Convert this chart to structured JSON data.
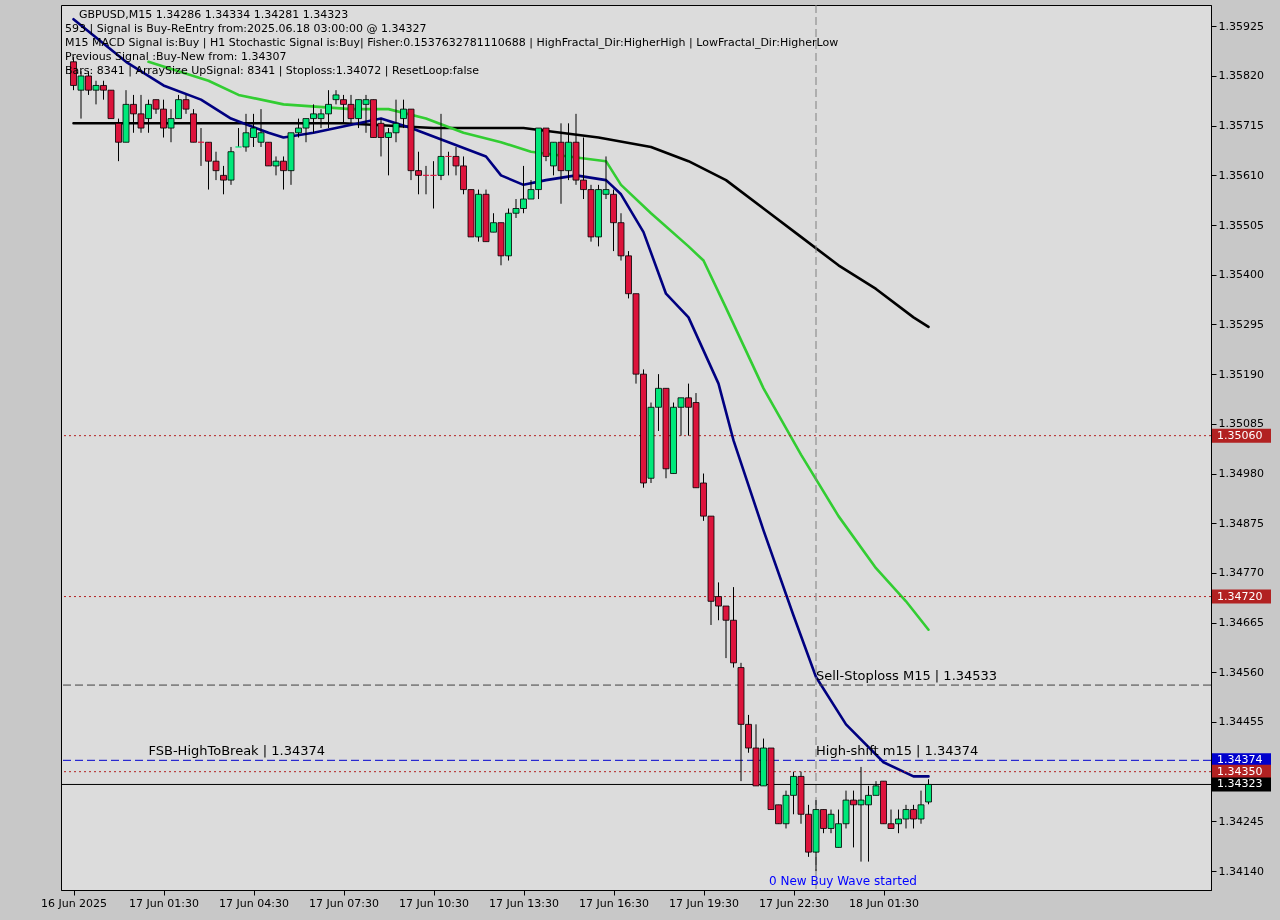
{
  "chart_data": {
    "type": "candlestick",
    "title": "GBPUSD,M15  1.34286 1.34334 1.34281 1.34323",
    "annotations": [
      "593 | Signal is Buy-ReEntry from:2025.06.18 03:00:00 @ 1.34327",
      "M15 MACD Signal is:Buy | H1 Stochastic Signal is:Buy| Fisher:0.1537632781110688 | HighFractal_Dir:HigherHigh | LowFractal_Dir:HigherLow",
      "Previous Signal :Buy-New from: 1.34307",
      "Bars: 8341 | ArraySize UpSignal: 8341 | Stoploss:1.34072 | ResetLoop:false",
      {
        "text": "FSB-HighToBreak | 1.34374",
        "x": "2025-06-17T01:00",
        "y": 1.34374
      },
      {
        "text": "Sell-Stoploss M15 | 1.34533",
        "x": "2025-06-17T23:15",
        "y": 1.34533
      },
      {
        "text": "High-shift m15 | 1.34374",
        "x": "2025-06-17T23:15",
        "y": 1.34374
      },
      "0 New Buy Wave started"
    ],
    "x": [
      "2025-06-16T22:30",
      "2025-06-16T22:45",
      "2025-06-16T23:00",
      "2025-06-16T23:15",
      "2025-06-16T23:30",
      "2025-06-16T23:45",
      "2025-06-17T00:00",
      "2025-06-17T00:15",
      "2025-06-17T00:30",
      "2025-06-17T00:45",
      "2025-06-17T01:00",
      "2025-06-17T01:15",
      "2025-06-17T01:30",
      "2025-06-17T01:45",
      "2025-06-17T02:00",
      "2025-06-17T02:15",
      "2025-06-17T02:30",
      "2025-06-17T02:45",
      "2025-06-17T03:00",
      "2025-06-17T03:15",
      "2025-06-17T03:30",
      "2025-06-17T03:45",
      "2025-06-17T04:00",
      "2025-06-17T04:15",
      "2025-06-17T04:30",
      "2025-06-17T04:45",
      "2025-06-17T05:00",
      "2025-06-17T05:15",
      "2025-06-17T05:30",
      "2025-06-17T05:45",
      "2025-06-17T06:00",
      "2025-06-17T06:15",
      "2025-06-17T06:30",
      "2025-06-17T06:45",
      "2025-06-17T07:00",
      "2025-06-17T07:15",
      "2025-06-17T07:30",
      "2025-06-17T07:45",
      "2025-06-17T08:00",
      "2025-06-17T08:15",
      "2025-06-17T08:30",
      "2025-06-17T08:45",
      "2025-06-17T09:00",
      "2025-06-17T09:15",
      "2025-06-17T09:30",
      "2025-06-17T09:45",
      "2025-06-17T10:00",
      "2025-06-17T10:15",
      "2025-06-17T10:30",
      "2025-06-17T10:45",
      "2025-06-17T11:00",
      "2025-06-17T11:15",
      "2025-06-17T11:30",
      "2025-06-17T11:45",
      "2025-06-17T12:00",
      "2025-06-17T12:15",
      "2025-06-17T12:30",
      "2025-06-17T12:45",
      "2025-06-17T13:00",
      "2025-06-17T13:15",
      "2025-06-17T13:30",
      "2025-06-17T13:45",
      "2025-06-17T14:00",
      "2025-06-17T14:15",
      "2025-06-17T14:30",
      "2025-06-17T14:45",
      "2025-06-17T15:00",
      "2025-06-17T15:15",
      "2025-06-17T15:30",
      "2025-06-17T15:45",
      "2025-06-17T16:00",
      "2025-06-17T16:15",
      "2025-06-17T16:30",
      "2025-06-17T16:45",
      "2025-06-17T17:00",
      "2025-06-17T17:15",
      "2025-06-17T17:30",
      "2025-06-17T17:45",
      "2025-06-17T18:00",
      "2025-06-17T18:15",
      "2025-06-17T18:30",
      "2025-06-17T18:45",
      "2025-06-17T19:00",
      "2025-06-17T19:15",
      "2025-06-17T19:30",
      "2025-06-17T19:45",
      "2025-06-17T20:00",
      "2025-06-17T20:15",
      "2025-06-17T20:30",
      "2025-06-17T20:45",
      "2025-06-17T21:00",
      "2025-06-17T21:15",
      "2025-06-17T21:30",
      "2025-06-17T21:45",
      "2025-06-17T22:00",
      "2025-06-17T22:15",
      "2025-06-17T22:30",
      "2025-06-17T22:45",
      "2025-06-17T23:00",
      "2025-06-17T23:15",
      "2025-06-17T23:30",
      "2025-06-17T23:45",
      "2025-06-18T00:00",
      "2025-06-18T00:15",
      "2025-06-18T00:30",
      "2025-06-18T00:45",
      "2025-06-18T01:00",
      "2025-06-18T01:15",
      "2025-06-18T01:30",
      "2025-06-18T01:45",
      "2025-06-18T02:00",
      "2025-06-18T02:15",
      "2025-06-18T02:30",
      "2025-06-18T02:45",
      "2025-06-18T03:00"
    ],
    "ohlc": [
      [
        1.3585,
        1.3586,
        1.3579,
        1.358
      ],
      [
        1.3579,
        1.3583,
        1.3573,
        1.3582
      ],
      [
        1.3582,
        1.3583,
        1.3578,
        1.3579
      ],
      [
        1.3579,
        1.3581,
        1.3576,
        1.358
      ],
      [
        1.358,
        1.3581,
        1.3577,
        1.3579
      ],
      [
        1.3579,
        1.3579,
        1.3573,
        1.3573
      ],
      [
        1.3572,
        1.3573,
        1.3564,
        1.3568
      ],
      [
        1.3568,
        1.3579,
        1.3568,
        1.3576
      ],
      [
        1.3576,
        1.3578,
        1.357,
        1.3574
      ],
      [
        1.3574,
        1.3578,
        1.357,
        1.3571
      ],
      [
        1.3573,
        1.3577,
        1.357,
        1.3576
      ],
      [
        1.3577,
        1.3577,
        1.3574,
        1.3575
      ],
      [
        1.3575,
        1.3577,
        1.3569,
        1.3571
      ],
      [
        1.3571,
        1.3575,
        1.3568,
        1.3573
      ],
      [
        1.3573,
        1.3578,
        1.3573,
        1.3577
      ],
      [
        1.3577,
        1.3578,
        1.3574,
        1.3575
      ],
      [
        1.3574,
        1.3575,
        1.3568,
        1.3568
      ],
      [
        1.3568,
        1.3571,
        1.3563,
        1.3568
      ],
      [
        1.3568,
        1.3568,
        1.3558,
        1.3564
      ],
      [
        1.3564,
        1.3566,
        1.356,
        1.3562
      ],
      [
        1.3561,
        1.3563,
        1.3557,
        1.356
      ],
      [
        1.356,
        1.3567,
        1.3559,
        1.3566
      ],
      [
        1.3567,
        1.3571,
        1.3567,
        1.3567
      ],
      [
        1.3567,
        1.3574,
        1.3566,
        1.357
      ],
      [
        1.3569,
        1.3574,
        1.3567,
        1.3571
      ],
      [
        1.3568,
        1.3575,
        1.3567,
        1.357
      ],
      [
        1.3568,
        1.3568,
        1.3563,
        1.3563
      ],
      [
        1.3563,
        1.3565,
        1.3561,
        1.3564
      ],
      [
        1.3564,
        1.3565,
        1.3558,
        1.3562
      ],
      [
        1.3562,
        1.357,
        1.3559,
        1.357
      ],
      [
        1.357,
        1.3573,
        1.3569,
        1.3571
      ],
      [
        1.3571,
        1.3573,
        1.3568,
        1.3573
      ],
      [
        1.3573,
        1.3576,
        1.357,
        1.3574
      ],
      [
        1.3573,
        1.3575,
        1.3571,
        1.3574
      ],
      [
        1.3574,
        1.3579,
        1.3571,
        1.3576
      ],
      [
        1.3577,
        1.3579,
        1.3576,
        1.3578
      ],
      [
        1.3577,
        1.3578,
        1.3572,
        1.3576
      ],
      [
        1.3576,
        1.3578,
        1.3572,
        1.3573
      ],
      [
        1.3573,
        1.3577,
        1.3571,
        1.3577
      ],
      [
        1.3576,
        1.3578,
        1.357,
        1.3577
      ],
      [
        1.3577,
        1.3577,
        1.3569,
        1.3569
      ],
      [
        1.3572,
        1.3573,
        1.3565,
        1.3569
      ],
      [
        1.3569,
        1.3571,
        1.3561,
        1.357
      ],
      [
        1.357,
        1.3577,
        1.3568,
        1.3572
      ],
      [
        1.3573,
        1.3577,
        1.3571,
        1.3575
      ],
      [
        1.3575,
        1.3575,
        1.356,
        1.3562
      ],
      [
        1.3562,
        1.3566,
        1.3557,
        1.3561
      ],
      [
        1.3561,
        1.3563,
        1.3557,
        1.3561
      ],
      [
        1.3561,
        1.3564,
        1.3554,
        1.3561
      ],
      [
        1.3561,
        1.3574,
        1.356,
        1.3565
      ],
      [
        1.3565,
        1.3566,
        1.3561,
        1.3565
      ],
      [
        1.3565,
        1.3567,
        1.3561,
        1.3563
      ],
      [
        1.3563,
        1.3565,
        1.3557,
        1.3558
      ],
      [
        1.3558,
        1.3558,
        1.3548,
        1.3548
      ],
      [
        1.3548,
        1.3558,
        1.3547,
        1.3557
      ],
      [
        1.3557,
        1.3558,
        1.3547,
        1.3547
      ],
      [
        1.3549,
        1.3553,
        1.3549,
        1.3551
      ],
      [
        1.3551,
        1.3551,
        1.3542,
        1.3544
      ],
      [
        1.3544,
        1.3554,
        1.3543,
        1.3553
      ],
      [
        1.3553,
        1.3556,
        1.3552,
        1.3554
      ],
      [
        1.3554,
        1.3563,
        1.3553,
        1.3556
      ],
      [
        1.3556,
        1.356,
        1.3556,
        1.3558
      ],
      [
        1.3558,
        1.3571,
        1.3556,
        1.3571
      ],
      [
        1.3571,
        1.3571,
        1.3564,
        1.3565
      ],
      [
        1.3563,
        1.3568,
        1.3561,
        1.3568
      ],
      [
        1.3568,
        1.3572,
        1.3555,
        1.3562
      ],
      [
        1.3562,
        1.3572,
        1.356,
        1.3568
      ],
      [
        1.3568,
        1.3574,
        1.3559,
        1.356
      ],
      [
        1.356,
        1.3569,
        1.3556,
        1.3558
      ],
      [
        1.3558,
        1.3559,
        1.3547,
        1.3548
      ],
      [
        1.3548,
        1.3559,
        1.3546,
        1.3558
      ],
      [
        1.3557,
        1.3565,
        1.3556,
        1.3558
      ],
      [
        1.3557,
        1.3558,
        1.3545,
        1.3551
      ],
      [
        1.3551,
        1.3553,
        1.3543,
        1.3544
      ],
      [
        1.3544,
        1.3545,
        1.3535,
        1.3536
      ],
      [
        1.3536,
        1.3536,
        1.3517,
        1.3519
      ],
      [
        1.3519,
        1.352,
        1.3495,
        1.3496
      ],
      [
        1.3497,
        1.3513,
        1.3496,
        1.3512
      ],
      [
        1.3512,
        1.3519,
        1.3507,
        1.3516
      ],
      [
        1.3516,
        1.3516,
        1.3497,
        1.3499
      ],
      [
        1.3498,
        1.3513,
        1.3498,
        1.3512
      ],
      [
        1.3512,
        1.3514,
        1.3506,
        1.3514
      ],
      [
        1.3514,
        1.3517,
        1.3506,
        1.3512
      ],
      [
        1.3513,
        1.3515,
        1.3495,
        1.3495
      ],
      [
        1.3496,
        1.3498,
        1.3488,
        1.3489
      ],
      [
        1.3489,
        1.3489,
        1.3466,
        1.3471
      ],
      [
        1.3472,
        1.3475,
        1.3467,
        1.347
      ],
      [
        1.347,
        1.347,
        1.3459,
        1.3467
      ],
      [
        1.3467,
        1.3474,
        1.3457,
        1.3458
      ],
      [
        1.3457,
        1.3458,
        1.3433,
        1.3445
      ],
      [
        1.3445,
        1.3447,
        1.3439,
        1.344
      ],
      [
        1.344,
        1.3445,
        1.3432,
        1.3432
      ],
      [
        1.3432,
        1.3442,
        1.3432,
        1.344
      ],
      [
        1.344,
        1.344,
        1.3427,
        1.3427
      ],
      [
        1.3428,
        1.3428,
        1.3424,
        1.3424
      ],
      [
        1.3424,
        1.3431,
        1.3423,
        1.343
      ],
      [
        1.343,
        1.3435,
        1.3426,
        1.3434
      ],
      [
        1.3434,
        1.3435,
        1.3424,
        1.3426
      ],
      [
        1.3426,
        1.3428,
        1.3417,
        1.3418
      ],
      [
        1.3418,
        1.3429,
        1.3414,
        1.3427
      ],
      [
        1.3427,
        1.3427,
        1.3422,
        1.3423
      ],
      [
        1.3423,
        1.3427,
        1.3422,
        1.3426
      ],
      [
        1.3419,
        1.3427,
        1.3419,
        1.3424
      ],
      [
        1.3424,
        1.3431,
        1.3423,
        1.3429
      ],
      [
        1.3429,
        1.3431,
        1.3419,
        1.3428
      ],
      [
        1.3428,
        1.3436,
        1.3416,
        1.3429
      ],
      [
        1.3428,
        1.3432,
        1.3416,
        1.343
      ],
      [
        1.343,
        1.3433,
        1.343,
        1.3432
      ],
      [
        1.3433,
        1.3433,
        1.3424,
        1.3424
      ],
      [
        1.3424,
        1.3427,
        1.3423,
        1.3423
      ],
      [
        1.3424,
        1.3427,
        1.3422,
        1.3425
      ],
      [
        1.3425,
        1.3428,
        1.3423,
        1.3427
      ],
      [
        1.3427,
        1.3428,
        1.3423,
        1.3425
      ],
      [
        1.3425,
        1.3431,
        1.3424,
        1.3428
      ],
      [
        1.34286,
        1.34334,
        1.34281,
        1.34323
      ]
    ],
    "colors": [
      "#dc143c",
      "#00e87a",
      "#dc143c",
      "#00e87a",
      "#dc143c",
      "#dc143c",
      "#dc143c",
      "#00e87a",
      "#dc143c",
      "#dc143c",
      "#00e87a",
      "#dc143c",
      "#dc143c",
      "#00e87a",
      "#00e87a",
      "#dc143c",
      "#dc143c",
      "#dc143c",
      "#dc143c",
      "#dc143c",
      "#dc143c",
      "#00e87a",
      "#00e87a",
      "#00e87a",
      "#00e87a",
      "#00e87a",
      "#dc143c",
      "#00e87a",
      "#dc143c",
      "#00e87a",
      "#00e87a",
      "#00e87a",
      "#00e87a",
      "#00e87a",
      "#00e87a",
      "#00e87a",
      "#dc143c",
      "#dc143c",
      "#00e87a",
      "#00e87a",
      "#dc143c",
      "#dc143c",
      "#00e87a",
      "#00e87a",
      "#00e87a",
      "#dc143c",
      "#dc143c",
      "#dc143c",
      "#dc143c",
      "#00e87a",
      "#dc143c",
      "#dc143c",
      "#dc143c",
      "#dc143c",
      "#00e87a",
      "#dc143c",
      "#00e87a",
      "#dc143c",
      "#00e87a",
      "#00e87a",
      "#00e87a",
      "#00e87a",
      "#00e87a",
      "#dc143c",
      "#00e87a",
      "#dc143c",
      "#00e87a",
      "#dc143c",
      "#dc143c",
      "#dc143c",
      "#00e87a",
      "#00e87a",
      "#dc143c",
      "#dc143c",
      "#dc143c",
      "#dc143c",
      "#dc143c",
      "#00e87a",
      "#00e87a",
      "#dc143c",
      "#00e87a",
      "#00e87a",
      "#dc143c",
      "#dc143c",
      "#dc143c",
      "#dc143c",
      "#dc143c",
      "#dc143c",
      "#dc143c",
      "#dc143c",
      "#dc143c",
      "#dc143c",
      "#00e87a",
      "#dc143c",
      "#dc143c",
      "#00e87a",
      "#00e87a",
      "#dc143c",
      "#dc143c",
      "#00e87a",
      "#dc143c",
      "#00e87a",
      "#00e87a",
      "#00e87a",
      "#dc143c",
      "#00e87a",
      "#00e87a",
      "#00e87a",
      "#dc143c",
      "#dc143c",
      "#00e87a",
      "#00e87a",
      "#dc143c",
      "#00e87a",
      "#00e87a"
    ],
    "series": [
      {
        "type": "line",
        "color": "#000000",
        "x": [
          "2025-06-16T22:30",
          "2025-06-17T01:30",
          "2025-06-17T04:30",
          "2025-06-17T07:30",
          "2025-06-17T10:30",
          "2025-06-17T13:30",
          "2025-06-17T16:00",
          "2025-06-17T17:45",
          "2025-06-17T19:00",
          "2025-06-17T20:15",
          "2025-06-17T21:30",
          "2025-06-17T22:45",
          "2025-06-18T00:00",
          "2025-06-18T01:15",
          "2025-06-18T02:30",
          "2025-06-18T03:00"
        ],
        "values": [
          1.3572,
          1.3572,
          1.3572,
          1.3572,
          1.3571,
          1.3571,
          1.3569,
          1.3567,
          1.3564,
          1.356,
          1.3554,
          1.3548,
          1.3542,
          1.3537,
          1.3531,
          1.3529
        ]
      },
      {
        "type": "line",
        "color": "#32cd32",
        "x": [
          "2025-06-17T01:00",
          "2025-06-17T03:00",
          "2025-06-17T04:00",
          "2025-06-17T05:30",
          "2025-06-17T07:45",
          "2025-06-17T09:00",
          "2025-06-17T10:15",
          "2025-06-17T11:30",
          "2025-06-17T12:45",
          "2025-06-17T13:45",
          "2025-06-17T16:15",
          "2025-06-17T16:45",
          "2025-06-17T17:45",
          "2025-06-17T19:00",
          "2025-06-17T19:30",
          "2025-06-17T20:15",
          "2025-06-17T21:30",
          "2025-06-17T22:45",
          "2025-06-18T00:00",
          "2025-06-18T01:15",
          "2025-06-18T02:15",
          "2025-06-18T03:00"
        ],
        "values": [
          1.3585,
          1.3581,
          1.3578,
          1.3576,
          1.3575,
          1.3575,
          1.3573,
          1.357,
          1.3568,
          1.3566,
          1.3564,
          1.3559,
          1.3553,
          1.3546,
          1.3543,
          1.3533,
          1.3516,
          1.3502,
          1.3489,
          1.3478,
          1.3471,
          1.3465
        ]
      },
      {
        "type": "line",
        "color": "#000080",
        "x": [
          "2025-06-16T22:30",
          "2025-06-17T00:15",
          "2025-06-17T01:30",
          "2025-06-17T02:45",
          "2025-06-17T03:45",
          "2025-06-17T05:00",
          "2025-06-17T05:30",
          "2025-06-17T06:30",
          "2025-06-17T08:00",
          "2025-06-17T08:45",
          "2025-06-17T09:45",
          "2025-06-17T11:00",
          "2025-06-17T12:15",
          "2025-06-17T12:45",
          "2025-06-17T13:30",
          "2025-06-17T14:15",
          "2025-06-17T15:15",
          "2025-06-17T16:15",
          "2025-06-17T16:45",
          "2025-06-17T17:30",
          "2025-06-17T18:15",
          "2025-06-17T19:00",
          "2025-06-17T20:00",
          "2025-06-17T20:30",
          "2025-06-17T21:30",
          "2025-06-17T22:30",
          "2025-06-17T23:15",
          "2025-06-18T00:15",
          "2025-06-18T01:30",
          "2025-06-18T02:30",
          "2025-06-18T03:00"
        ],
        "values": [
          1.3594,
          1.3585,
          1.358,
          1.3577,
          1.3573,
          1.357,
          1.3569,
          1.357,
          1.3572,
          1.3573,
          1.3571,
          1.3568,
          1.3565,
          1.3561,
          1.3559,
          1.356,
          1.3561,
          1.356,
          1.3557,
          1.3549,
          1.3536,
          1.3531,
          1.3517,
          1.3505,
          1.3486,
          1.3468,
          1.3455,
          1.3445,
          1.3437,
          1.3434,
          1.3434
        ]
      }
    ],
    "ref_lines": [
      {
        "axis": "y",
        "value": 1.3506,
        "label": "1.35060",
        "color": "#b22222",
        "line_style": "dotted"
      },
      {
        "axis": "y",
        "value": 1.3472,
        "label": "1.34720",
        "color": "#b22222",
        "line_style": "dotted"
      },
      {
        "axis": "y",
        "value": 1.34533,
        "color": "#404040",
        "line_style": "dashed"
      },
      {
        "axis": "y",
        "value": 1.34374,
        "label": "1.34374",
        "color": "#0000cd",
        "line_style": "dashed"
      },
      {
        "axis": "y",
        "value": 1.3435,
        "label": "1.34350",
        "color": "#b22222",
        "line_style": "dotted"
      },
      {
        "axis": "y",
        "value": 1.34323,
        "label": "1.34323",
        "color": "#000000",
        "line_style": "solid"
      },
      {
        "axis": "x",
        "value": "2025-06-17T23:15",
        "color": "#808080",
        "line_style": "dashed"
      }
    ],
    "xlim": [
      "2025-06-16T22:15",
      "2025-06-18T12:15"
    ],
    "xticks": [
      {
        "value": "2025-06-16T22:30",
        "label": "16 Jun 2025"
      },
      {
        "value": "2025-06-17T01:30",
        "label": "17 Jun 01:30"
      },
      {
        "value": "2025-06-17T04:30",
        "label": "17 Jun 04:30"
      },
      {
        "value": "2025-06-17T07:30",
        "label": "17 Jun 07:30"
      },
      {
        "value": "2025-06-17T10:30",
        "label": "17 Jun 10:30"
      },
      {
        "value": "2025-06-17T13:30",
        "label": "17 Jun 13:30"
      },
      {
        "value": "2025-06-17T16:30",
        "label": "17 Jun 16:30"
      },
      {
        "value": "2025-06-17T19:30",
        "label": "17 Jun 19:30"
      },
      {
        "value": "2025-06-17T22:30",
        "label": "17 Jun 22:30"
      },
      {
        "value": "2025-06-18T01:30",
        "label": "18 Jun 01:30"
      }
    ],
    "ylim": [
      1.341,
      1.3597
    ],
    "yticks": [
      1.35925,
      {
        "value": 1.3582,
        "label": "1.35820"
      },
      1.35715,
      {
        "value": 1.3561,
        "label": "1.35610"
      },
      1.35505,
      {
        "value": 1.354,
        "label": "1.35400"
      },
      1.35295,
      {
        "value": 1.3519,
        "label": "1.35190"
      },
      1.35085,
      {
        "value": 1.3498,
        "label": "1.34980"
      },
      1.34875,
      {
        "value": 1.3477,
        "label": "1.34770"
      },
      1.34665,
      {
        "value": 1.3456,
        "label": "1.34560"
      },
      1.34455,
      1.34245,
      {
        "value": 1.3414,
        "label": "1.34140"
      }
    ]
  }
}
